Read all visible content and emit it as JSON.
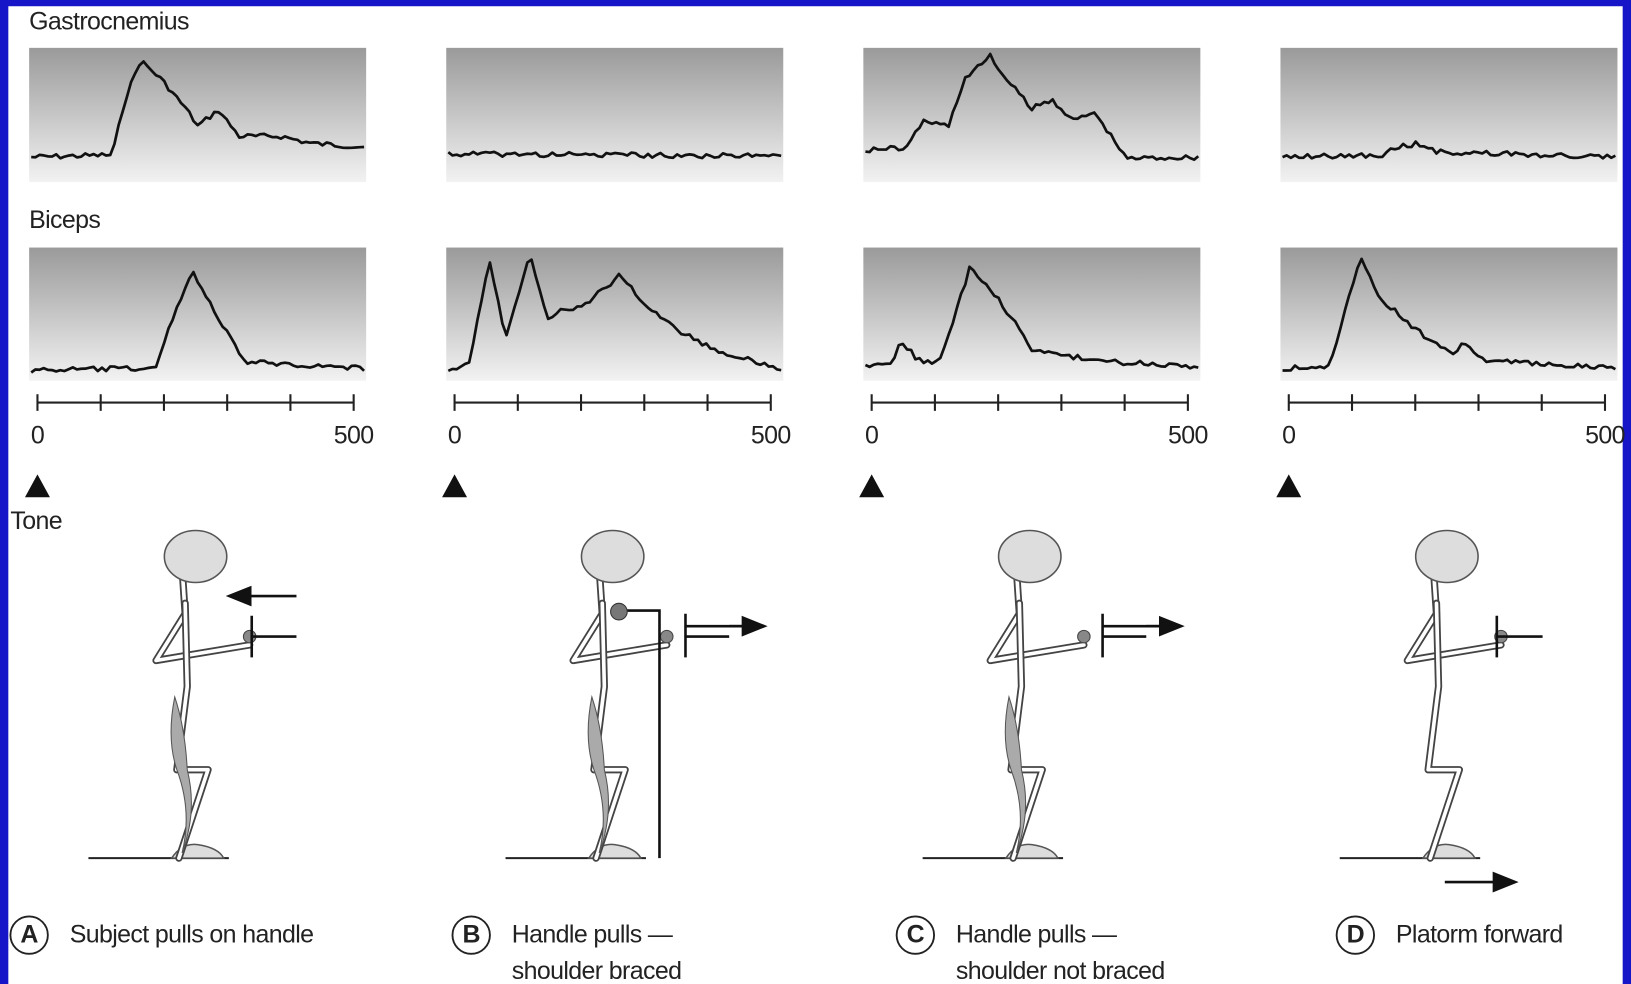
{
  "rows": {
    "gastrocnemius": "Gastrocnemius",
    "biceps": "Biceps",
    "tone": "Tone"
  },
  "panels": [
    {
      "letter": "A",
      "caption": [
        "Subject pulls on handle"
      ],
      "axis": {
        "start": "0",
        "end": "500"
      }
    },
    {
      "letter": "B",
      "caption": [
        "Handle pulls —",
        "shoulder braced"
      ],
      "axis": {
        "start": "0",
        "end": "500"
      }
    },
    {
      "letter": "C",
      "caption": [
        "Handle pulls —",
        "shoulder not braced"
      ],
      "axis": {
        "start": "0",
        "end": "500"
      }
    },
    {
      "letter": "D",
      "caption": [
        "Platorm forward"
      ],
      "axis": {
        "start": "0",
        "end": "500"
      }
    }
  ]
}
